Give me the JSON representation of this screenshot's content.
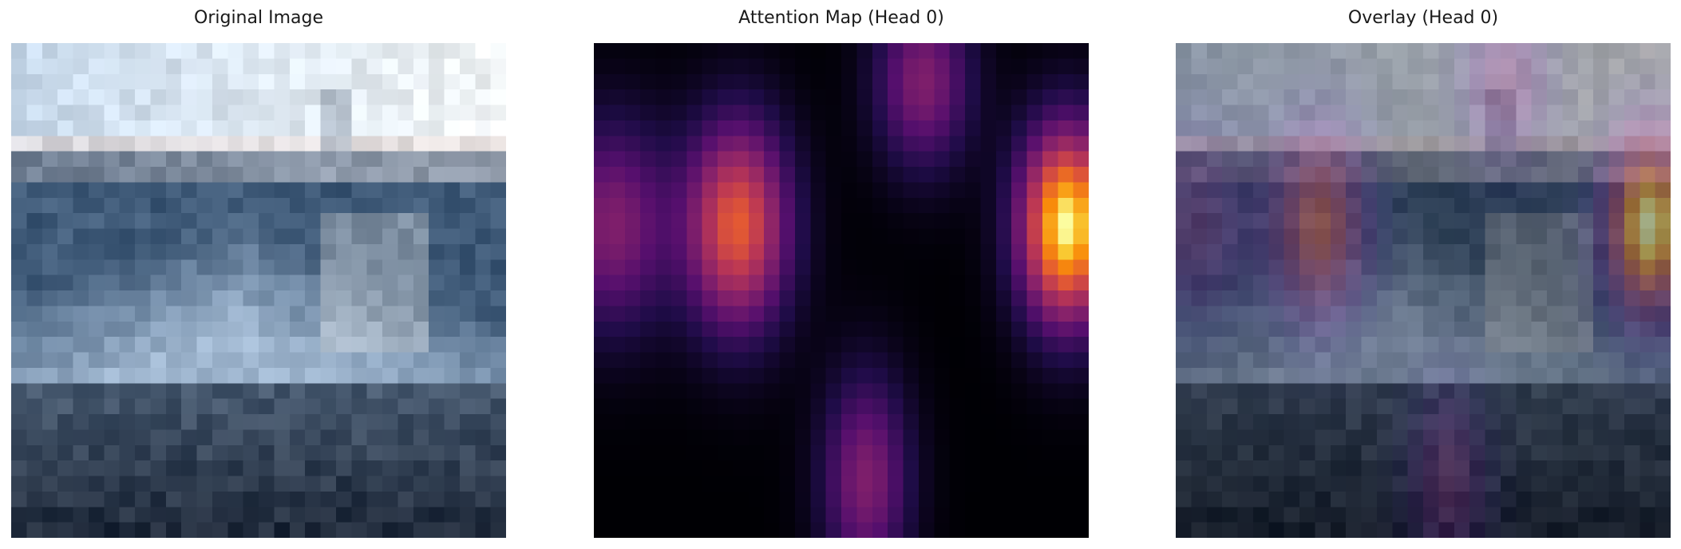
{
  "panels": [
    {
      "title": "Original Image",
      "image": "pixelated-harbor-boats-photo"
    },
    {
      "title": "Attention Map (Head 0)",
      "image": "attention-heatmap",
      "colormap": "inferno"
    },
    {
      "title": "Overlay (Head 0)",
      "image": "attention-overlay-on-photo",
      "colormap": "inferno"
    }
  ],
  "colors": {
    "background": "#ffffff",
    "title_text": "#1a1a1a",
    "sky": "#dfe8f0",
    "water": "#3f5a78",
    "boat_hull": "#9fb6cf",
    "shadow": "#1c2636"
  }
}
